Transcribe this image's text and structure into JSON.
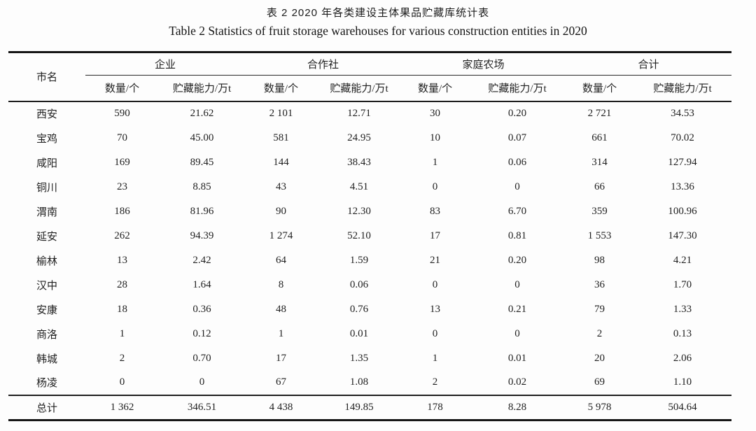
{
  "caption": {
    "zh": "表 2 2020 年各类建设主体果品贮藏库统计表",
    "en": "Table 2 Statistics of fruit storage warehouses for various construction entities in 2020"
  },
  "colors": {
    "text": "#1f1f1f",
    "border": "#1a1a1a",
    "background": "#fdfdfd"
  },
  "chart_data": {
    "type": "table",
    "corner_header": "市名",
    "column_groups": [
      {
        "label": "企业",
        "cols": [
          "数量/个",
          "贮藏能力/万t"
        ]
      },
      {
        "label": "合作社",
        "cols": [
          "数量/个",
          "贮藏能力/万t"
        ]
      },
      {
        "label": "家庭农场",
        "cols": [
          "数量/个",
          "贮藏能力/万t"
        ]
      },
      {
        "label": "合计",
        "cols": [
          "数量/个",
          "贮藏能力/万t"
        ]
      }
    ],
    "rows": [
      {
        "city": "西安",
        "values": [
          "590",
          "21.62",
          "2 101",
          "12.71",
          "30",
          "0.20",
          "2 721",
          "34.53"
        ]
      },
      {
        "city": "宝鸡",
        "values": [
          "70",
          "45.00",
          "581",
          "24.95",
          "10",
          "0.07",
          "661",
          "70.02"
        ]
      },
      {
        "city": "咸阳",
        "values": [
          "169",
          "89.45",
          "144",
          "38.43",
          "1",
          "0.06",
          "314",
          "127.94"
        ]
      },
      {
        "city": "铜川",
        "values": [
          "23",
          "8.85",
          "43",
          "4.51",
          "0",
          "0",
          "66",
          "13.36"
        ]
      },
      {
        "city": "渭南",
        "values": [
          "186",
          "81.96",
          "90",
          "12.30",
          "83",
          "6.70",
          "359",
          "100.96"
        ]
      },
      {
        "city": "延安",
        "values": [
          "262",
          "94.39",
          "1 274",
          "52.10",
          "17",
          "0.81",
          "1 553",
          "147.30"
        ]
      },
      {
        "city": "榆林",
        "values": [
          "13",
          "2.42",
          "64",
          "1.59",
          "21",
          "0.20",
          "98",
          "4.21"
        ]
      },
      {
        "city": "汉中",
        "values": [
          "28",
          "1.64",
          "8",
          "0.06",
          "0",
          "0",
          "36",
          "1.70"
        ]
      },
      {
        "city": "安康",
        "values": [
          "18",
          "0.36",
          "48",
          "0.76",
          "13",
          "0.21",
          "79",
          "1.33"
        ]
      },
      {
        "city": "商洛",
        "values": [
          "1",
          "0.12",
          "1",
          "0.01",
          "0",
          "0",
          "2",
          "0.13"
        ]
      },
      {
        "city": "韩城",
        "values": [
          "2",
          "0.70",
          "17",
          "1.35",
          "1",
          "0.01",
          "20",
          "2.06"
        ]
      },
      {
        "city": "杨凌",
        "values": [
          "0",
          "0",
          "67",
          "1.08",
          "2",
          "0.02",
          "69",
          "1.10"
        ]
      }
    ],
    "total": {
      "city": "总计",
      "values": [
        "1 362",
        "346.51",
        "4 438",
        "149.85",
        "178",
        "8.28",
        "5 978",
        "504.64"
      ]
    }
  }
}
